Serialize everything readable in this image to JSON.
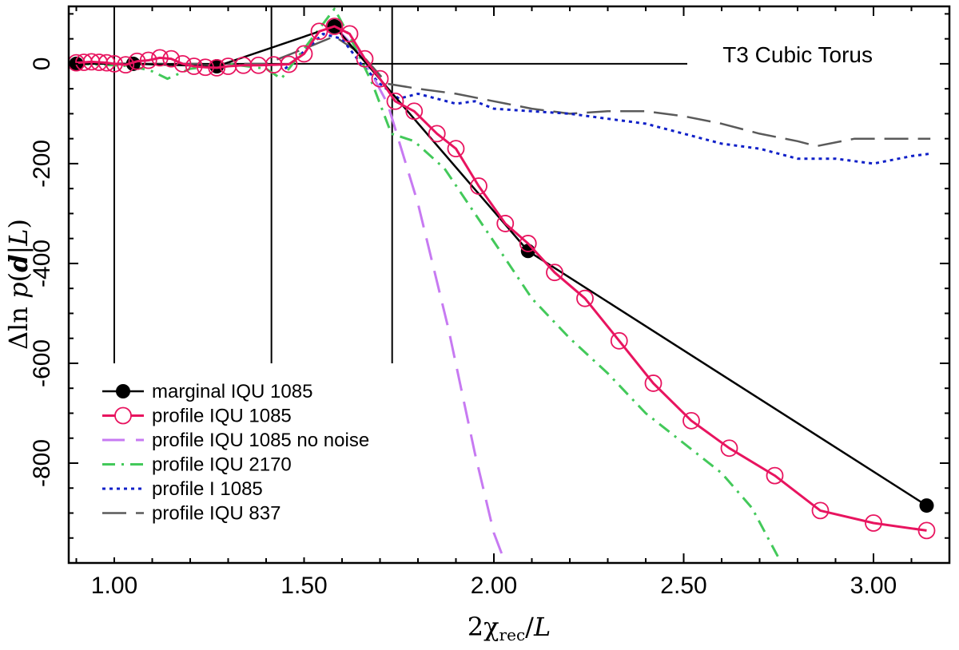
{
  "chart_data": {
    "type": "line",
    "title": "",
    "annotation": "T3 Cubic Torus",
    "xlabel": "2χrec/L",
    "ylabel": "Δln p(d|L)",
    "xlim": [
      0.88,
      3.2
    ],
    "ylim": [
      -1000,
      115
    ],
    "x_ticks": [
      1.0,
      1.5,
      2.0,
      2.5,
      3.0
    ],
    "x_tick_labels": [
      "1.00",
      "1.50",
      "2.00",
      "2.50",
      "3.00"
    ],
    "y_ticks": [
      0,
      -200,
      -400,
      -600,
      -800
    ],
    "y_tick_labels": [
      "0",
      "-200",
      "-400",
      "-600",
      "-800"
    ],
    "vertical_lines_x": [
      1.0,
      1.414,
      1.732
    ],
    "zero_line": true,
    "grid": false,
    "legend_position": "bottom-left",
    "series": [
      {
        "name": "marginal IQU 1085",
        "color": "#000000",
        "style": "solid-filled-dots",
        "x": [
          0.9,
          1.05,
          1.27,
          1.58,
          2.09,
          3.14
        ],
        "y": [
          0,
          0,
          -5,
          75,
          -375,
          -885
        ]
      },
      {
        "name": "profile IQU 1085",
        "color": "#e8145f",
        "style": "solid-open-circles",
        "x": [
          0.9,
          0.92,
          0.94,
          0.96,
          0.98,
          1.0,
          1.03,
          1.06,
          1.09,
          1.12,
          1.15,
          1.18,
          1.21,
          1.24,
          1.27,
          1.3,
          1.34,
          1.38,
          1.42,
          1.46,
          1.5,
          1.54,
          1.58,
          1.62,
          1.66,
          1.7,
          1.74,
          1.79,
          1.85,
          1.9,
          1.96,
          2.03,
          2.09,
          2.16,
          2.24,
          2.33,
          2.42,
          2.52,
          2.62,
          2.74,
          2.86,
          3.0,
          3.14
        ],
        "y": [
          2,
          3,
          4,
          3,
          2,
          0,
          -2,
          5,
          7,
          12,
          10,
          0,
          -5,
          -7,
          -8,
          -5,
          -3,
          -3,
          -2,
          -1,
          20,
          65,
          75,
          60,
          10,
          -30,
          -75,
          -95,
          -140,
          -170,
          -245,
          -320,
          -360,
          -418,
          -470,
          -555,
          -640,
          -715,
          -770,
          -825,
          -895,
          -920,
          -935
        ]
      },
      {
        "name": "profile IQU 1085 no noise",
        "color": "#c77af2",
        "style": "long-dash",
        "x": [
          1.58,
          1.65,
          1.72,
          1.8,
          1.88,
          1.95,
          2.0,
          2.03
        ],
        "y": [
          75,
          20,
          -80,
          -280,
          -530,
          -780,
          -940,
          -1000
        ]
      },
      {
        "name": "profile IQU 2170",
        "color": "#43c95a",
        "style": "dash-dot",
        "x": [
          0.9,
          1.0,
          1.05,
          1.1,
          1.14,
          1.2,
          1.3,
          1.4,
          1.44,
          1.5,
          1.58,
          1.63,
          1.68,
          1.73,
          1.79,
          1.87,
          1.95,
          2.03,
          2.1,
          2.2,
          2.3,
          2.4,
          2.5,
          2.6,
          2.68,
          2.75
        ],
        "y": [
          0,
          -3,
          -5,
          -15,
          -30,
          -10,
          0,
          -10,
          -30,
          30,
          110,
          40,
          -40,
          -140,
          -155,
          -210,
          -300,
          -390,
          -470,
          -550,
          -620,
          -700,
          -760,
          -820,
          -890,
          -990
        ]
      },
      {
        "name": "profile I 1085",
        "color": "#1020c8",
        "style": "dotted",
        "x": [
          1.45,
          1.55,
          1.6,
          1.65,
          1.7,
          1.75,
          1.8,
          1.85,
          1.9,
          1.95,
          2.0,
          2.1,
          2.2,
          2.3,
          2.4,
          2.5,
          2.6,
          2.7,
          2.8,
          2.9,
          3.0,
          3.1,
          3.15
        ],
        "y": [
          -10,
          60,
          50,
          0,
          -40,
          -70,
          -60,
          -70,
          -80,
          -75,
          -90,
          -95,
          -100,
          -110,
          -120,
          -140,
          -160,
          -170,
          -190,
          -190,
          -200,
          -185,
          -180
        ]
      },
      {
        "name": "profile IQU 837",
        "color": "#5a5a5a",
        "style": "dashed",
        "x": [
          0.9,
          1.0,
          1.1,
          1.2,
          1.3,
          1.4,
          1.5,
          1.58,
          1.65,
          1.72,
          1.8,
          1.9,
          2.0,
          2.1,
          2.2,
          2.3,
          2.4,
          2.5,
          2.6,
          2.7,
          2.8,
          2.85,
          2.95,
          3.05,
          3.15
        ],
        "y": [
          0,
          0,
          0,
          0,
          0,
          0,
          30,
          55,
          20,
          -40,
          -50,
          -60,
          -75,
          -90,
          -100,
          -95,
          -95,
          -105,
          -120,
          -140,
          -155,
          -165,
          -150,
          -150,
          -150
        ]
      }
    ]
  }
}
